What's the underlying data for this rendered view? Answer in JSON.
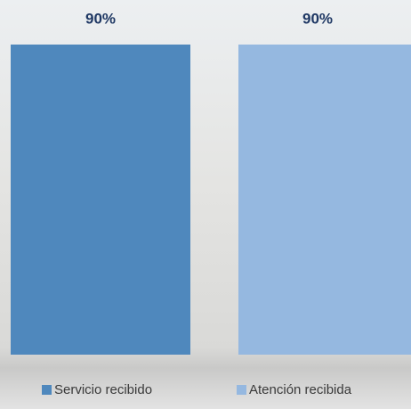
{
  "chart_data": {
    "type": "bar",
    "categories": [
      null
    ],
    "series": [
      {
        "name": "Servicio recibido",
        "color": "#4f88bd",
        "values": [
          90
        ],
        "value_labels": [
          "90%"
        ]
      },
      {
        "name": "Atención recibida",
        "color": "#95b8e0",
        "values": [
          90
        ],
        "value_labels": [
          "90%"
        ]
      }
    ]
  }
}
